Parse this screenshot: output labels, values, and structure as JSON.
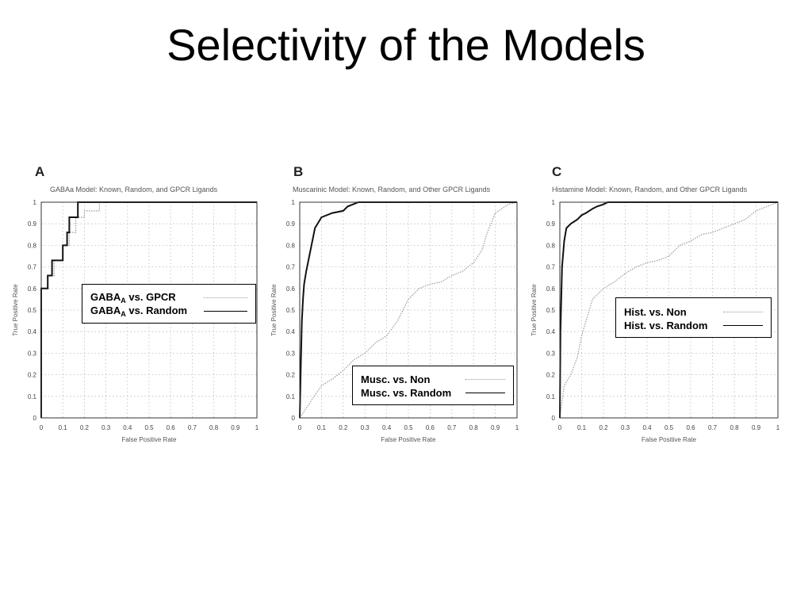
{
  "slide": {
    "title": "Selectivity of the Models"
  },
  "chart_data": [
    {
      "type": "line",
      "panel_letter": "A",
      "title": "GABAa Model: Known, Random, and GPCR Ligands",
      "xlabel": "False Positive Rate",
      "ylabel": "True Positive Rate",
      "xlim": [
        0,
        1
      ],
      "ylim": [
        0,
        1
      ],
      "xticks": [
        "0",
        "0.1",
        "0.2",
        "0.3",
        "0.4",
        "0.5",
        "0.6",
        "0.7",
        "0.8",
        "0.9",
        "1"
      ],
      "yticks": [
        "0",
        "0.1",
        "0.2",
        "0.3",
        "0.4",
        "0.5",
        "0.6",
        "0.7",
        "0.8",
        "0.9",
        "1"
      ],
      "grid": true,
      "legend_position": "center-right",
      "series": [
        {
          "name": "GABA",
          "name_sub": "A",
          "name_suffix": "vs. GPCR",
          "style": "dotted",
          "x": [
            0,
            0,
            0.03,
            0.03,
            0.06,
            0.06,
            0.1,
            0.1,
            0.13,
            0.13,
            0.16,
            0.16,
            0.2,
            0.2,
            0.27,
            0.27,
            1
          ],
          "y": [
            0,
            0.6,
            0.6,
            0.66,
            0.66,
            0.73,
            0.73,
            0.8,
            0.8,
            0.86,
            0.86,
            0.93,
            0.93,
            0.96,
            0.96,
            1,
            1
          ]
        },
        {
          "name": "GABA",
          "name_sub": "A",
          "name_suffix": "vs. Random",
          "style": "solid",
          "x": [
            0,
            0,
            0.03,
            0.03,
            0.05,
            0.05,
            0.1,
            0.1,
            0.12,
            0.12,
            0.13,
            0.13,
            0.17,
            0.17,
            1
          ],
          "y": [
            0,
            0.6,
            0.6,
            0.66,
            0.66,
            0.73,
            0.73,
            0.8,
            0.8,
            0.86,
            0.86,
            0.93,
            0.93,
            1,
            1
          ]
        }
      ]
    },
    {
      "type": "line",
      "panel_letter": "B",
      "title": "Muscarinic Model: Known, Random, and Other GPCR Ligands",
      "xlabel": "False Positive Rate",
      "ylabel": "True Positive Rate",
      "xlim": [
        0,
        1
      ],
      "ylim": [
        0,
        1
      ],
      "xticks": [
        "0",
        "0.1",
        "0.2",
        "0.3",
        "0.4",
        "0.5",
        "0.6",
        "0.7",
        "0.8",
        "0.9",
        "1"
      ],
      "yticks": [
        "0",
        "0.1",
        "0.2",
        "0.3",
        "0.4",
        "0.5",
        "0.6",
        "0.7",
        "0.8",
        "0.9",
        "1"
      ],
      "grid": true,
      "legend_position": "lower-right",
      "series": [
        {
          "name": "Musc. vs. Non",
          "style": "dotted",
          "x": [
            0,
            0.02,
            0.04,
            0.06,
            0.08,
            0.1,
            0.15,
            0.2,
            0.25,
            0.3,
            0.35,
            0.4,
            0.45,
            0.5,
            0.55,
            0.6,
            0.65,
            0.7,
            0.75,
            0.8,
            0.84,
            0.86,
            0.88,
            0.9,
            0.93,
            0.96,
            1
          ],
          "y": [
            0,
            0.03,
            0.06,
            0.09,
            0.12,
            0.15,
            0.18,
            0.22,
            0.27,
            0.3,
            0.35,
            0.38,
            0.45,
            0.55,
            0.6,
            0.62,
            0.63,
            0.66,
            0.68,
            0.72,
            0.78,
            0.85,
            0.9,
            0.95,
            0.97,
            0.99,
            1
          ]
        },
        {
          "name": "Musc. vs. Random",
          "style": "solid",
          "x": [
            0,
            0.005,
            0.01,
            0.015,
            0.02,
            0.03,
            0.05,
            0.07,
            0.1,
            0.15,
            0.2,
            0.22,
            0.27,
            0.3,
            1
          ],
          "y": [
            0,
            0.25,
            0.45,
            0.55,
            0.62,
            0.68,
            0.78,
            0.88,
            0.93,
            0.95,
            0.96,
            0.98,
            1,
            1,
            1
          ]
        }
      ]
    },
    {
      "type": "line",
      "panel_letter": "C",
      "title": "Histamine Model: Known, Random, and Other GPCR Ligands",
      "xlabel": "False Positive Rate",
      "ylabel": "True Positive Rate",
      "xlim": [
        0,
        1
      ],
      "ylim": [
        0,
        1
      ],
      "xticks": [
        "0",
        "0.1",
        "0.2",
        "0.3",
        "0.4",
        "0.5",
        "0.6",
        "0.7",
        "0.8",
        "0.9",
        "1"
      ],
      "yticks": [
        "0",
        "0.1",
        "0.2",
        "0.3",
        "0.4",
        "0.5",
        "0.6",
        "0.7",
        "0.8",
        "0.9",
        "1"
      ],
      "grid": true,
      "legend_position": "center-right",
      "series": [
        {
          "name": "Hist. vs. Non",
          "style": "dotted",
          "x": [
            0,
            0.02,
            0.05,
            0.08,
            0.1,
            0.12,
            0.15,
            0.2,
            0.25,
            0.3,
            0.35,
            0.4,
            0.45,
            0.5,
            0.55,
            0.6,
            0.65,
            0.7,
            0.75,
            0.8,
            0.85,
            0.9,
            0.95,
            1
          ],
          "y": [
            0,
            0.15,
            0.2,
            0.28,
            0.38,
            0.45,
            0.55,
            0.6,
            0.63,
            0.67,
            0.7,
            0.72,
            0.73,
            0.75,
            0.8,
            0.82,
            0.85,
            0.86,
            0.88,
            0.9,
            0.92,
            0.96,
            0.98,
            1
          ]
        },
        {
          "name": "Hist. vs. Random",
          "style": "solid",
          "x": [
            0,
            0.003,
            0.01,
            0.02,
            0.03,
            0.05,
            0.08,
            0.1,
            0.12,
            0.15,
            0.17,
            0.2,
            0.22,
            1
          ],
          "y": [
            0,
            0.4,
            0.7,
            0.82,
            0.88,
            0.9,
            0.92,
            0.94,
            0.95,
            0.97,
            0.98,
            0.99,
            1,
            1
          ]
        }
      ]
    }
  ]
}
